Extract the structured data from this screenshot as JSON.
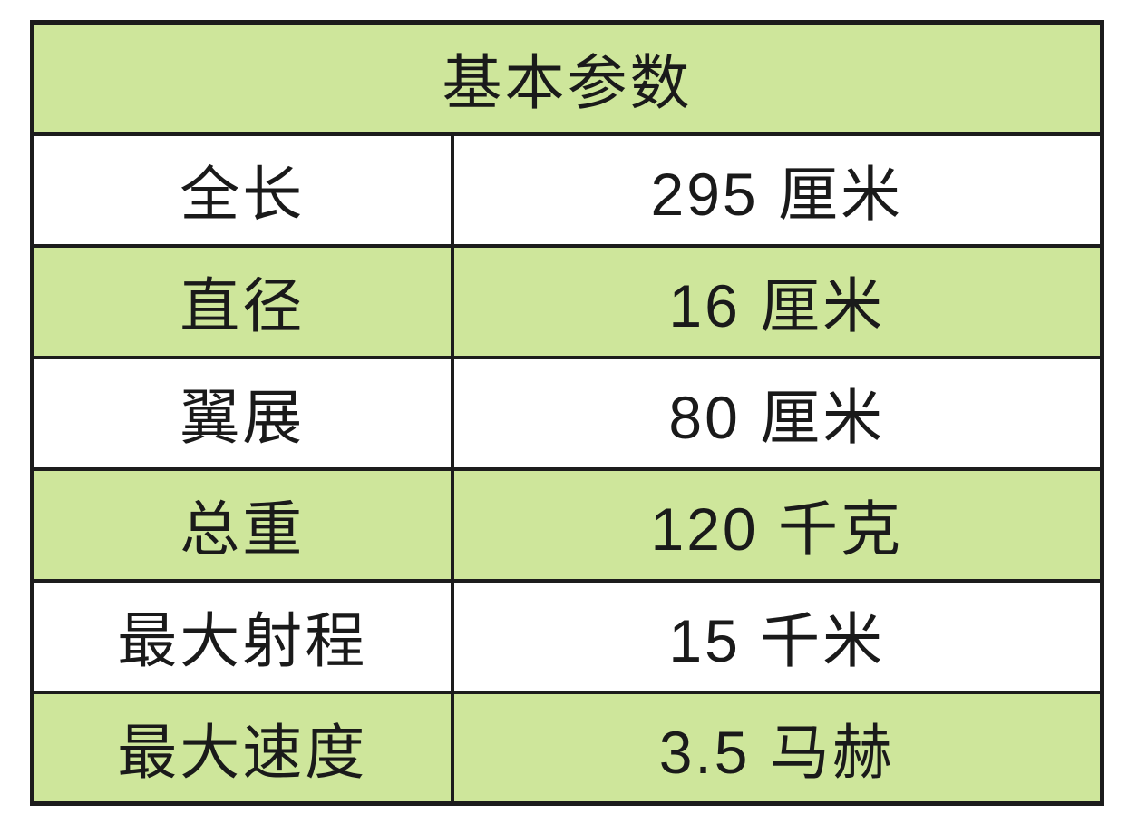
{
  "table": {
    "title": "基本参数",
    "columns": {
      "label_column": "parameter-name",
      "value_column": "parameter-value"
    },
    "rows": [
      {
        "label": "全长",
        "value": "295 厘米"
      },
      {
        "label": "直径",
        "value": "16 厘米"
      },
      {
        "label": "翼展",
        "value": "80 厘米"
      },
      {
        "label": "总重",
        "value": "120 千克"
      },
      {
        "label": "最大射程",
        "value": "15 千米"
      },
      {
        "label": "最大速度",
        "value": "3.5 马赫"
      }
    ],
    "colors": {
      "band_green": "#cee69b",
      "band_white": "#ffffff",
      "grid_border": "#1c1c1c",
      "text": "#1a1a1a",
      "page_background": "#ffffff"
    }
  }
}
